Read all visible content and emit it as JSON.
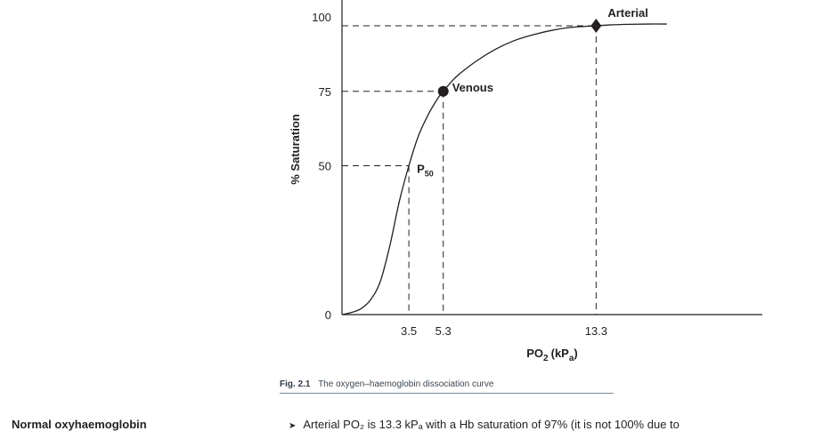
{
  "chart_data": {
    "type": "line",
    "xlabel": "PO",
    "xlabel_sub": "2",
    "xlabel_unit_prefix": "(kP",
    "xlabel_unit_sub": "a",
    "xlabel_unit_suffix": ")",
    "ylabel": "% Saturation",
    "xlim": [
      0,
      22
    ],
    "ylim": [
      0,
      100
    ],
    "x_ticks": [
      {
        "value": 3.5,
        "label": "3.5"
      },
      {
        "value": 5.3,
        "label": "5.3"
      },
      {
        "value": 13.3,
        "label": "13.3"
      }
    ],
    "y_ticks": [
      {
        "value": 0,
        "label": "0"
      },
      {
        "value": 50,
        "label": "50"
      },
      {
        "value": 75,
        "label": "75"
      },
      {
        "value": 100,
        "label": "100"
      }
    ],
    "series": [
      {
        "x": [
          0,
          0.5,
          1.0,
          1.5,
          2.0,
          2.5,
          3.0,
          3.5,
          4.0,
          4.5,
          5.0,
          5.3,
          6.0,
          7.0,
          8.0,
          9.0,
          10.0,
          11.0,
          12.0,
          13.3,
          14.0,
          15.0,
          16.0,
          17.0
        ],
        "y": [
          0,
          0.7,
          2,
          5,
          11,
          23,
          38,
          50,
          60,
          67,
          72.5,
          75,
          80,
          85,
          89,
          92,
          94,
          95.5,
          96.5,
          97,
          97.3,
          97.5,
          97.6,
          97.6
        ]
      }
    ],
    "points": [
      {
        "name": "Venous",
        "x": 5.3,
        "y": 75,
        "marker": "circle"
      },
      {
        "name": "Arterial",
        "x": 13.3,
        "y": 97,
        "marker": "diamond"
      },
      {
        "name": "P",
        "sub": "50",
        "x": 3.5,
        "y": 50,
        "marker": "none"
      }
    ]
  },
  "caption": {
    "figure": "Fig. 2.1",
    "text": "The oxygen–haemoglobin dissociation curve"
  },
  "below": {
    "heading": "Normal oxyhaemoglobin",
    "bullet": "➤",
    "text": "Arterial PO₂ is 13.3 kPₐ with a Hb saturation of 97% (it is not 100% due to"
  }
}
